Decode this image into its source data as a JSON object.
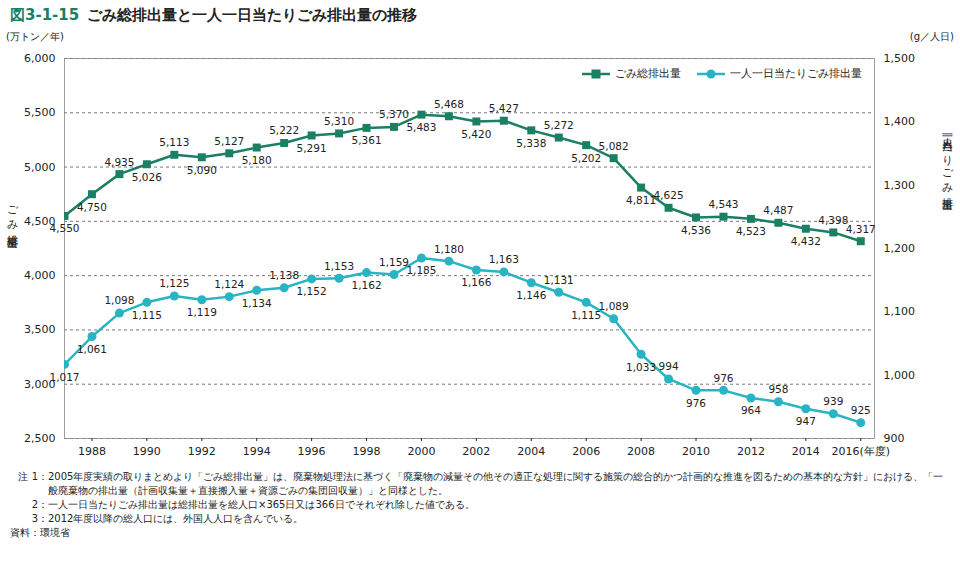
{
  "chart_data": {
    "type": "line",
    "title": "図3-1-15　ごみ総排出量と一人一日当たりごみ排出量の推移",
    "ylabel": "ごみ総排出量",
    "y2label": "一人一日当たりごみ排出量",
    "yunit": "(万トン／年)",
    "y2unit": "(g／人日)",
    "x": [
      1987,
      1988,
      1989,
      1990,
      1991,
      1992,
      1993,
      1994,
      1995,
      1996,
      1997,
      1998,
      1999,
      2000,
      2001,
      2002,
      2003,
      2004,
      2005,
      2006,
      2007,
      2008,
      2009,
      2010,
      2011,
      2012,
      2013,
      2014,
      2015,
      2016
    ],
    "xlim": [
      1987,
      2016.5
    ],
    "xticks": [
      1988,
      1990,
      1992,
      1994,
      1996,
      1998,
      2000,
      2002,
      2004,
      2006,
      2008,
      2010,
      2012,
      2014,
      {
        "value": 2016,
        "label": "2016(年度)"
      }
    ],
    "ylim": [
      2500,
      6000
    ],
    "yticks": [
      {
        "value": 2500,
        "label": "2,500"
      },
      {
        "value": 3000,
        "label": "3,000"
      },
      {
        "value": 3500,
        "label": "3,500"
      },
      {
        "value": 4000,
        "label": "4,000"
      },
      {
        "value": 4500,
        "label": "4,500"
      },
      {
        "value": 5000,
        "label": "5,000"
      },
      {
        "value": 5500,
        "label": "5,500"
      },
      {
        "value": 6000,
        "label": "6,000"
      }
    ],
    "y2lim": [
      900,
      1500
    ],
    "y2ticks": [
      900,
      {
        "value": 1000,
        "label": "1,000"
      },
      {
        "value": 1100,
        "label": "1,100"
      },
      {
        "value": 1200,
        "label": "1,200"
      },
      {
        "value": 1300,
        "label": "1,300"
      },
      {
        "value": 1400,
        "label": "1,400"
      },
      {
        "value": 1500,
        "label": "1,500"
      }
    ],
    "grid": true,
    "legend": "top-right",
    "data_labels": true,
    "series": [
      {
        "name": "ごみ総排出量",
        "color": "#1b7f63",
        "marker": "square",
        "values": [
          4550,
          4750,
          4935,
          5026,
          5113,
          5090,
          5127,
          5180,
          5222,
          5291,
          5310,
          5361,
          5370,
          5483,
          5468,
          5420,
          5427,
          5338,
          5272,
          5202,
          5082,
          4811,
          4625,
          4536,
          4543,
          4523,
          4487,
          4432,
          4398,
          4317
        ],
        "value_labels": [
          "4,550",
          "4,750",
          "4,935",
          "5,026",
          "5,113",
          "5,090",
          "5,127",
          "5,180",
          "5,222",
          "5,291",
          "5,310",
          "5,361",
          "5,370",
          "5,483",
          "5,468",
          "5,420",
          "5,427",
          "5,338",
          "5,272",
          "5,202",
          "5,082",
          "4,811",
          "4,625",
          "4,536",
          "4,543",
          "4,523",
          "4,487",
          "4,432",
          "4,398",
          "4,317"
        ]
      },
      {
        "name": "一人一日当たりごみ排出量",
        "color": "#29b4c4",
        "marker": "circle",
        "axis": "y2",
        "values": [
          1017,
          1061,
          1098,
          1115,
          1125,
          1119,
          1124,
          1134,
          1138,
          1152,
          1153,
          1162,
          1159,
          1185,
          1180,
          1166,
          1163,
          1146,
          1131,
          1115,
          1089,
          1033,
          994,
          976,
          976,
          964,
          958,
          947,
          939,
          925
        ],
        "value_labels": [
          "1,017",
          "1,061",
          "1,098",
          "1,115",
          "1,125",
          "1,119",
          "1,124",
          "1,134",
          "1,138",
          "1,152",
          "1,153",
          "1,162",
          "1,159",
          "1,185",
          "1,180",
          "1,166",
          "1,163",
          "1,146",
          "1,131",
          "1,115",
          "1,089",
          "1,033",
          "994",
          "976",
          "976",
          "964",
          "958",
          "947",
          "939",
          "925"
        ]
      }
    ],
    "notes": [
      "注 1：2005年度実績の取りまとめより「ごみ総排出量」は、廃棄物処理法に基づく「廃棄物の減量その他その適正な処理に関する施策の総合的かつ計画的な推進を図るための基本的な方針」における、「一般廃棄物の排出量（計画収集量＋直接搬入量＋資源ごみの集団回収量）」と同様とした。",
      "2：一人一日当たりごみ排出量は総排出量を総人口×365日又は366日でそれぞれ除した値である。",
      "3：2012年度以降の総人口には、外国人人口を含んでいる。"
    ],
    "source": "資料：環境省"
  }
}
